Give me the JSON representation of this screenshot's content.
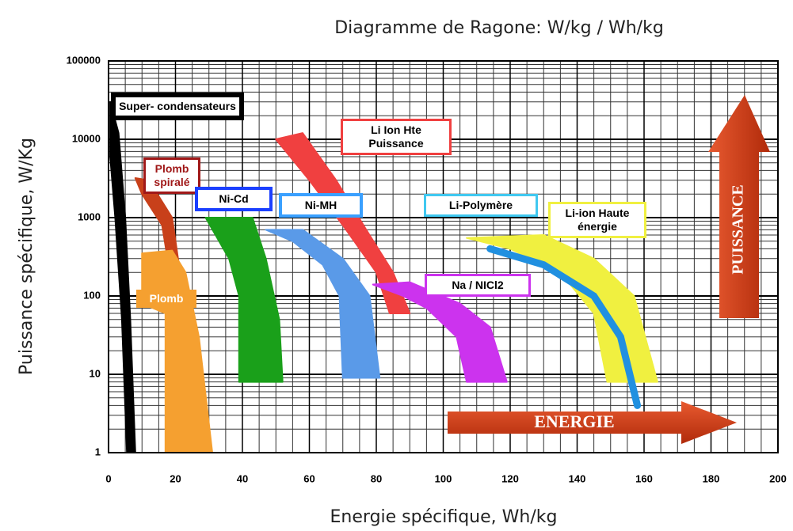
{
  "chart_data": {
    "type": "ragone",
    "title": "Diagramme de Ragone:  W/kg   /  Wh/kg",
    "x_label": "Energie spécifique, Wh/kg",
    "y_label": "Puissance spécifique,  W/Kg",
    "xlim": [
      0,
      200
    ],
    "xticks": [
      0,
      20,
      40,
      60,
      80,
      100,
      120,
      140,
      160,
      180,
      200
    ],
    "ylim": [
      1,
      100000
    ],
    "yticks": [
      1,
      10,
      100,
      1000,
      10000,
      100000
    ],
    "ylog": true,
    "grid": true,
    "annotations": [
      "ENERGIE",
      "PUISSANCE"
    ],
    "series": [
      {
        "name": "Super- condensateurs",
        "color": "#000000",
        "x": [
          0.5,
          3,
          5,
          6.5,
          8,
          5.5,
          4,
          2,
          0.5
        ],
        "values": [
          30000,
          12000,
          1000,
          50,
          1,
          1,
          50,
          1000,
          6000
        ]
      },
      {
        "name": "Plomb spiralé",
        "color": "#c8401a",
        "x": [
          8,
          12,
          19,
          22,
          19,
          16,
          10
        ],
        "values": [
          3200,
          3000,
          1000,
          130,
          130,
          800,
          2000
        ]
      },
      {
        "name": "Plomb",
        "color": "#f5a030",
        "x": [
          10,
          19,
          23,
          27,
          31,
          17,
          17,
          10
        ],
        "values": [
          350,
          380,
          200,
          30,
          1,
          1,
          60,
          80
        ]
      },
      {
        "name": "Ni-Cd",
        "color": "#1aa01a",
        "x": [
          29,
          43,
          47,
          51,
          52,
          39,
          39,
          36
        ],
        "values": [
          1000,
          1000,
          300,
          50,
          8,
          8,
          100,
          300
        ]
      },
      {
        "name": "Ni-MH",
        "color": "#5a9ae8",
        "x": [
          47,
          58,
          70,
          78,
          81,
          70,
          69,
          64,
          55
        ],
        "values": [
          700,
          700,
          300,
          100,
          9,
          9,
          100,
          250,
          500
        ]
      },
      {
        "name": "Li Ion Hte Puissance",
        "color": "#f04040",
        "x": [
          50,
          58,
          68,
          77,
          85,
          90,
          84,
          80,
          70,
          60
        ],
        "values": [
          10000,
          12000,
          3000,
          700,
          200,
          60,
          60,
          200,
          800,
          3000
        ]
      },
      {
        "name": "Na / NICl2",
        "color": "#cc33ee",
        "x": [
          79,
          90,
          105,
          114,
          119,
          107,
          104,
          95,
          88
        ],
        "values": [
          140,
          150,
          80,
          40,
          8,
          8,
          30,
          70,
          100
        ]
      },
      {
        "name": "Li-ion Haute énergie",
        "color": "#f0f040",
        "x": [
          107,
          130,
          145,
          157,
          164,
          149,
          145,
          135,
          120
        ],
        "values": [
          550,
          600,
          300,
          100,
          8,
          8,
          60,
          200,
          400
        ]
      },
      {
        "name": "Li-Polymère",
        "color": "#2090e0",
        "x": [
          114,
          130,
          145,
          153,
          158
        ],
        "values": [
          400,
          250,
          100,
          30,
          4
        ]
      }
    ]
  }
}
